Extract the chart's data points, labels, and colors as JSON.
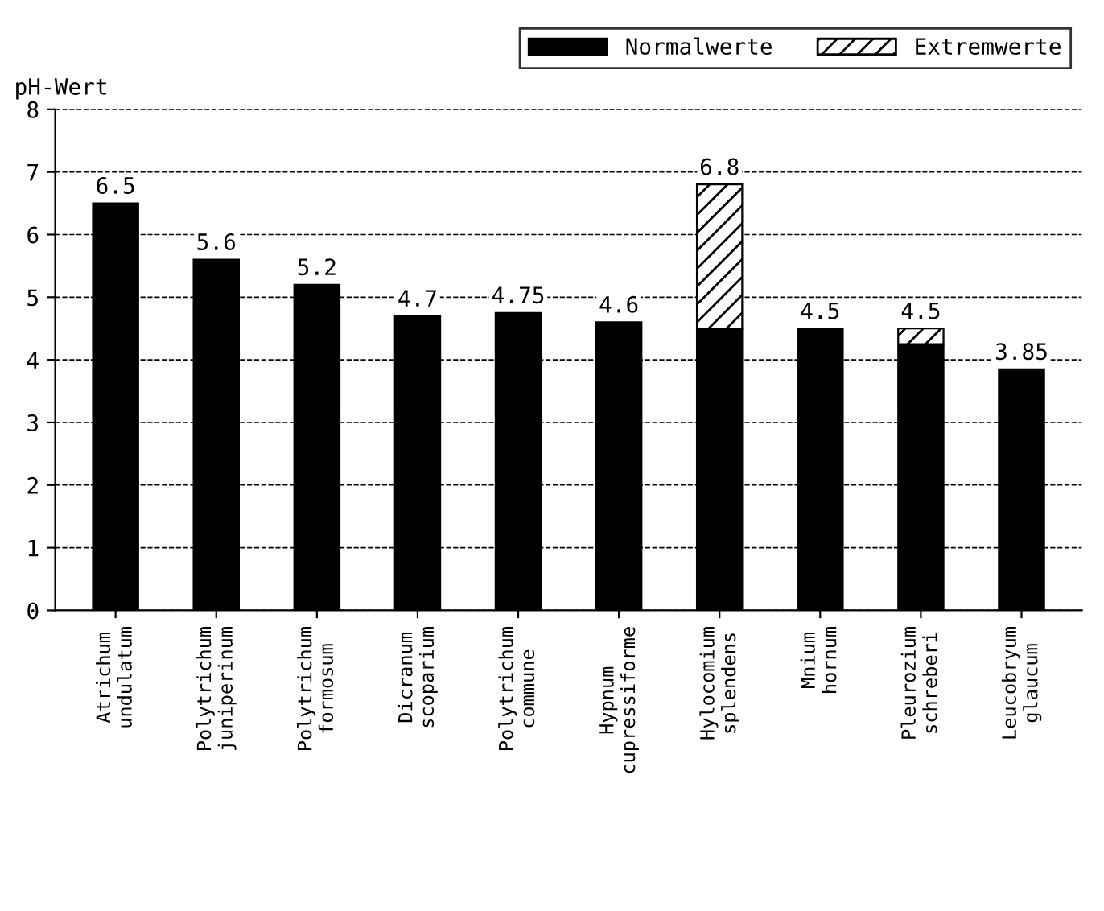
{
  "chart_data": {
    "type": "bar",
    "stacked": true,
    "ylabel": "pH-Wert",
    "categories": [
      "Atrichum\nundulatum",
      "Polytrichum\njuniperinum",
      "Polytrichum\nformosum",
      "Dicranum\nscoparium",
      "Polytrichum\ncommune",
      "Hypnum\ncupressiforme",
      "Hylocomium\nsplendens",
      "Mnium\nhornum",
      "Pleurozium\nschreberi",
      "Leucobryum\nglaucum"
    ],
    "series": [
      {
        "name": "Normalwerte",
        "color": "#000000",
        "values": [
          6.5,
          5.6,
          5.2,
          4.7,
          4.75,
          4.6,
          4.5,
          4.5,
          4.25,
          3.85
        ]
      },
      {
        "name": "Extremwerte",
        "color": "#000000",
        "values": [
          null,
          null,
          null,
          null,
          null,
          null,
          2.3,
          null,
          0.25,
          null
        ]
      }
    ],
    "totals": [
      "6.5",
      "5.6",
      "5.2",
      "4.7",
      "4.75",
      "4.6",
      "6.8",
      "4.5",
      "4.5",
      "3.85"
    ],
    "ylim": [
      0,
      8
    ],
    "yticks": [
      0,
      1,
      2,
      3,
      4,
      5,
      6,
      7,
      8
    ],
    "grid": "y",
    "line_style": "dashed",
    "legend": "top right"
  }
}
